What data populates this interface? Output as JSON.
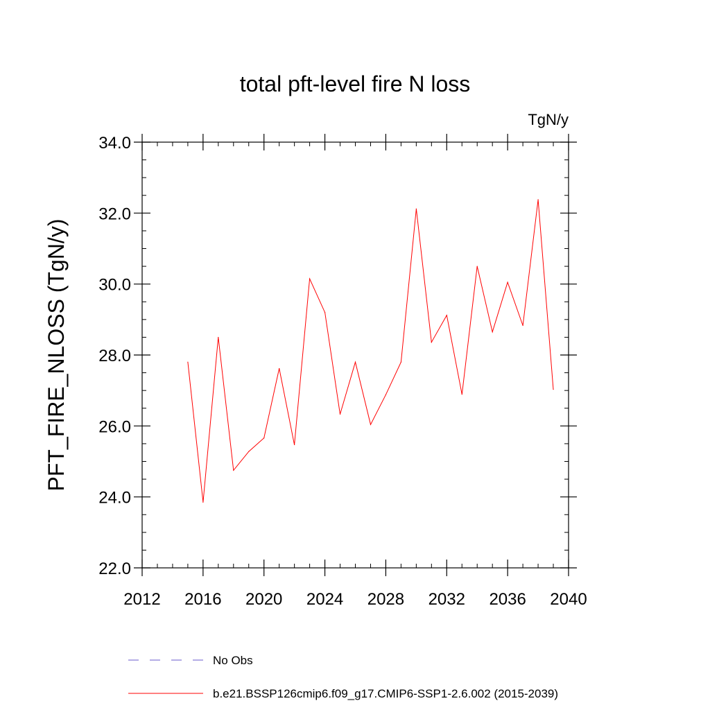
{
  "chart_data": {
    "type": "line",
    "title": "total pft-level fire N loss",
    "units": "TgN/y",
    "xlabel": "",
    "ylabel": "PFT_FIRE_NLOSS  (TgN/y)",
    "xlim": [
      2012,
      2040
    ],
    "ylim": [
      22.0,
      34.0
    ],
    "x_ticks": [
      2012,
      2016,
      2020,
      2024,
      2028,
      2032,
      2036,
      2040
    ],
    "x_tick_labels": [
      "2012",
      "2016",
      "2020",
      "2024",
      "2028",
      "2032",
      "2036",
      "2040"
    ],
    "y_ticks": [
      22.0,
      24.0,
      26.0,
      28.0,
      30.0,
      32.0,
      34.0
    ],
    "y_tick_labels": [
      "22.0",
      "24.0",
      "26.0",
      "28.0",
      "30.0",
      "32.0",
      "34.0"
    ],
    "grid": false,
    "legend_position": "bottom",
    "series": [
      {
        "name": "b.e21.BSSP126cmip6.f09_g17.CMIP6-SSP1-2.6.002 (2015-2039)",
        "color": "#ff0000",
        "style": "solid",
        "x": [
          2015,
          2016,
          2017,
          2018,
          2019,
          2020,
          2021,
          2022,
          2023,
          2024,
          2025,
          2026,
          2027,
          2028,
          2029,
          2030,
          2031,
          2032,
          2033,
          2034,
          2035,
          2036,
          2037,
          2038,
          2039
        ],
        "values": [
          27.8,
          23.85,
          28.5,
          24.75,
          25.28,
          25.66,
          27.62,
          25.47,
          30.15,
          29.2,
          26.33,
          27.8,
          26.04,
          26.88,
          27.8,
          32.12,
          28.36,
          29.12,
          26.89,
          30.5,
          28.65,
          30.05,
          28.83,
          32.38,
          27.03
        ]
      }
    ],
    "legend": [
      {
        "label": "No Obs",
        "color": "#6a5acd",
        "style": "dashed"
      },
      {
        "label": "b.e21.BSSP126cmip6.f09_g17.CMIP6-SSP1-2.6.002 (2015-2039)",
        "color": "#ff0000",
        "style": "solid"
      }
    ]
  }
}
